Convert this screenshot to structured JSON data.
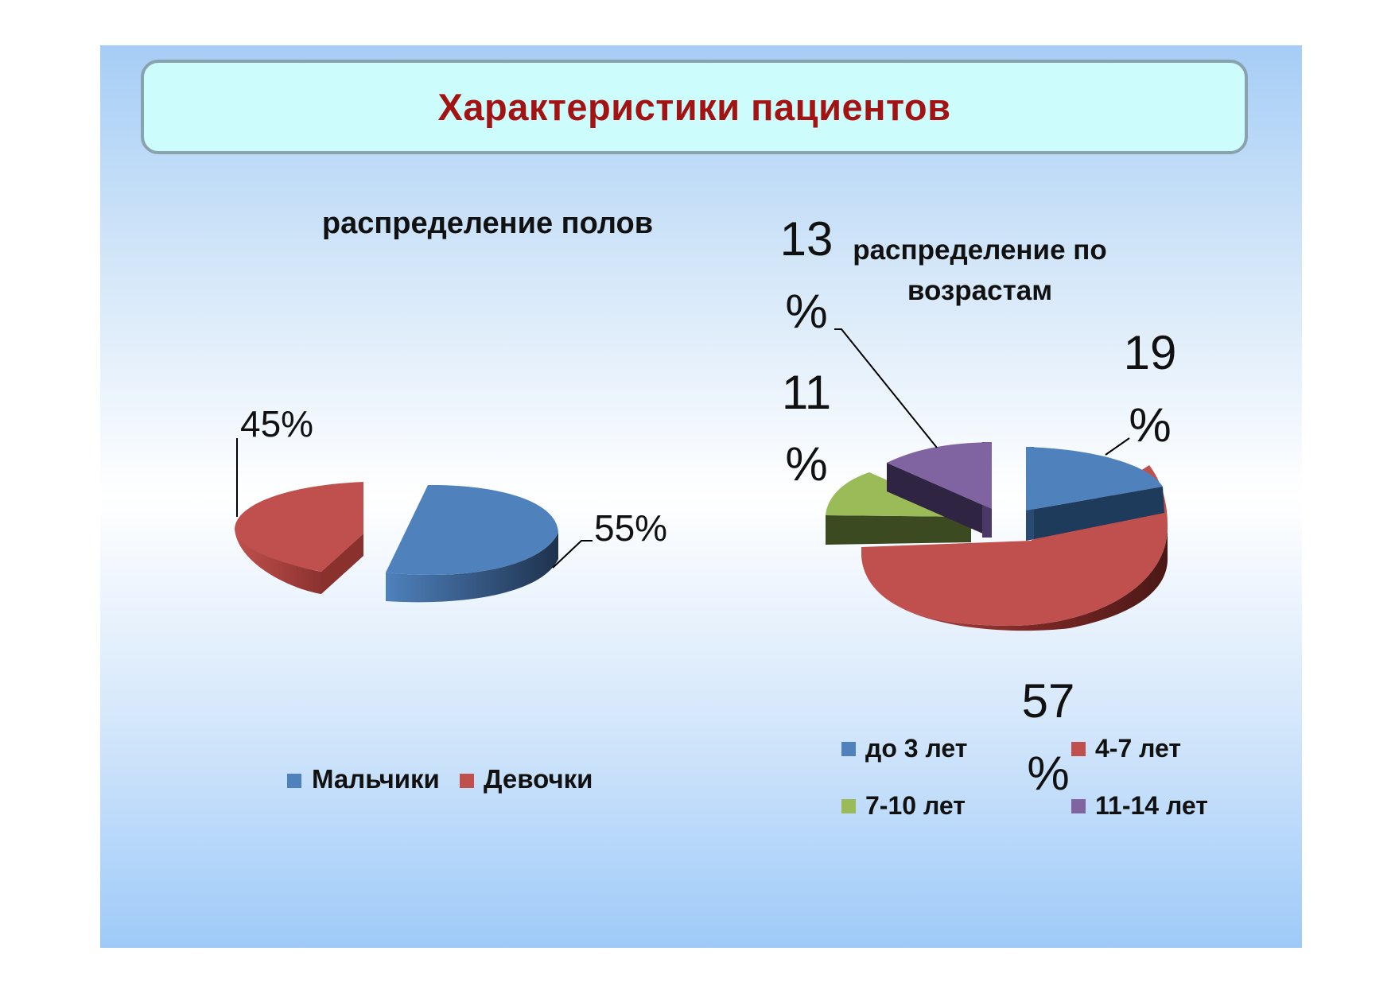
{
  "slide_title": "Характеристики пациентов",
  "colors": {
    "blue": "#4f81bd",
    "red": "#c0504d",
    "green": "#9bbb59",
    "purple": "#8064a2",
    "title_text": "#a31313",
    "title_fill": "#ccfcfc"
  },
  "chart_data": [
    {
      "type": "pie",
      "title": "распределение полов",
      "categories": [
        "Мальчики",
        "Девочки"
      ],
      "values": [
        55,
        45
      ],
      "data_labels": [
        "55%",
        "45%"
      ],
      "exploded": true,
      "style": "3d",
      "legend_position": "bottom"
    },
    {
      "type": "pie",
      "title_lines": [
        "распределение по",
        "возрастам"
      ],
      "categories": [
        "до 3 лет",
        "4-7 лет",
        "7-10 лет",
        "11-14 лет"
      ],
      "values": [
        19,
        57,
        11,
        13
      ],
      "data_label_lines": [
        [
          "19",
          "%"
        ],
        [
          "57",
          "%"
        ],
        [
          "11",
          "%"
        ],
        [
          "13",
          "%"
        ]
      ],
      "exploded": true,
      "style": "3d",
      "legend_position": "bottom"
    }
  ]
}
